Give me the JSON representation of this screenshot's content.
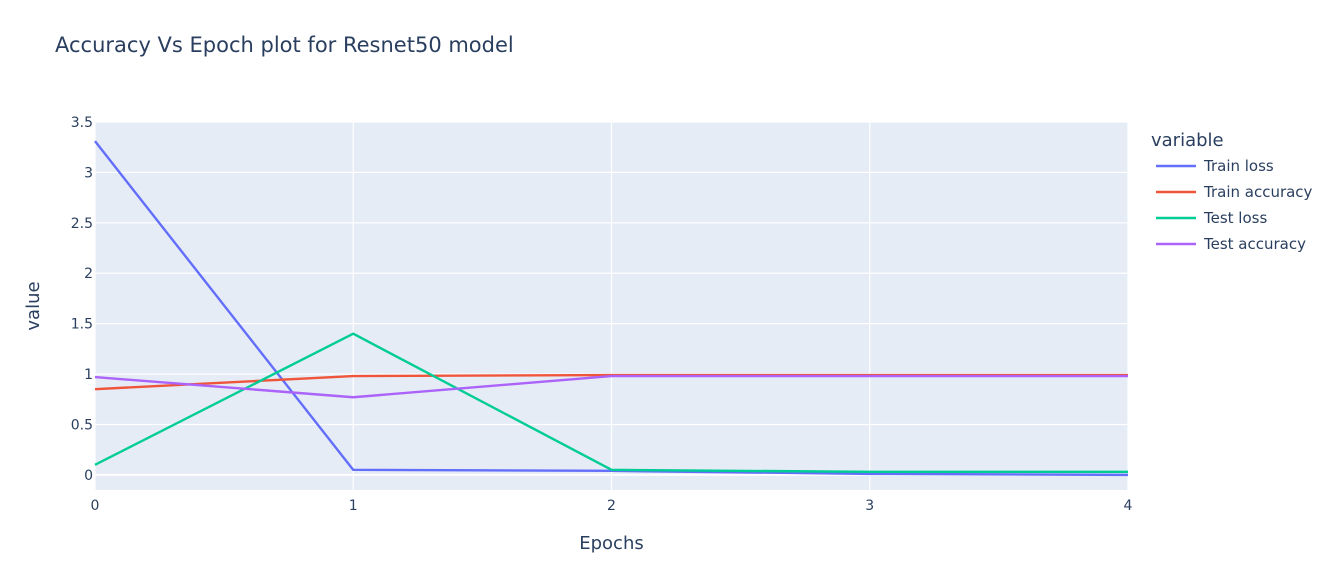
{
  "chart_data": {
    "type": "line",
    "title": "Accuracy Vs Epoch plot for Resnet50 model",
    "xlabel": "Epochs",
    "ylabel": "value",
    "xlim": [
      0,
      4
    ],
    "ylim": [
      -0.15,
      3.5
    ],
    "x_ticks": [
      "0",
      "1",
      "2",
      "3",
      "4"
    ],
    "y_ticks": [
      "0",
      "0.5",
      "1",
      "1.5",
      "2",
      "2.5",
      "3",
      "3.5"
    ],
    "grid": true,
    "background": "#e5ecf6",
    "legend_title": "variable",
    "legend_position": "right",
    "x": [
      0,
      1,
      2,
      3,
      4
    ],
    "series": [
      {
        "name": "Train loss",
        "color": "#636efa",
        "values": [
          3.31,
          0.05,
          0.04,
          0.01,
          0.0
        ]
      },
      {
        "name": "Train accuracy",
        "color": "#ef553b",
        "values": [
          0.85,
          0.98,
          0.99,
          0.99,
          0.99
        ]
      },
      {
        "name": "Test loss",
        "color": "#00cc96",
        "values": [
          0.1,
          1.4,
          0.05,
          0.03,
          0.03
        ]
      },
      {
        "name": "Test accuracy",
        "color": "#ab63fa",
        "values": [
          0.97,
          0.77,
          0.98,
          0.98,
          0.98
        ]
      }
    ]
  }
}
